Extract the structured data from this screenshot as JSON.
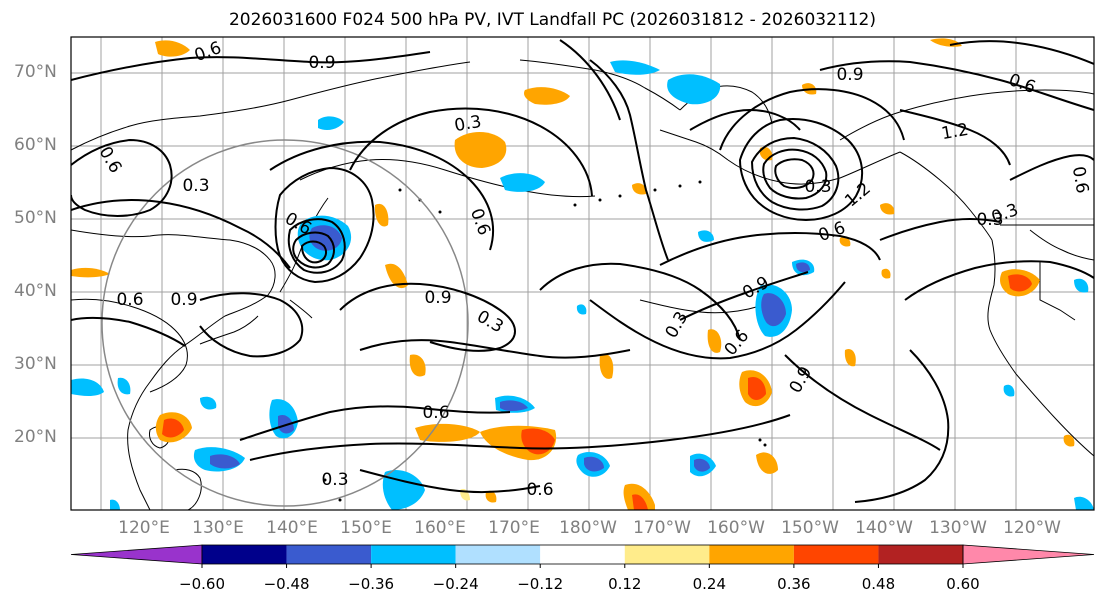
{
  "title": "2026031600 F024 500 hPa PV, IVT Landfall PC (2026031812 - 2026032112)",
  "lat_labels": [
    "70°N",
    "60°N",
    "50°N",
    "40°N",
    "30°N",
    "20°N"
  ],
  "lon_labels": [
    "120°E",
    "130°E",
    "140°E",
    "150°E",
    "160°E",
    "170°E",
    "180°W",
    "170°W",
    "160°W",
    "150°W",
    "140°W",
    "130°W",
    "120°W"
  ],
  "contour_labels": [
    "0.6",
    "0.9",
    "0.3",
    "0.6",
    "0.6",
    "0.9",
    "0.3",
    "0.6",
    "0.9",
    "0.3",
    "0.6",
    "0.9",
    "1.2",
    "0.6",
    "0.3",
    "0.6",
    "1.2",
    "0.6",
    "0.3",
    "0.9",
    "0.6",
    "0.3",
    "0.9",
    "0.6",
    "0.3",
    "0.6",
    "0.3"
  ],
  "colorbar": {
    "tick_labels": [
      "−0.60",
      "−0.48",
      "−0.36",
      "−0.24",
      "−0.12",
      "0.12",
      "0.24",
      "0.36",
      "0.48",
      "0.60"
    ],
    "colors": [
      "#9933cc",
      "#00008b",
      "#3a5bcf",
      "#00bfff",
      "#b0e0ff",
      "#ffffff",
      "#ffec8b",
      "#ffa500",
      "#ff4500",
      "#b22222",
      "#ff88aa"
    ]
  }
}
